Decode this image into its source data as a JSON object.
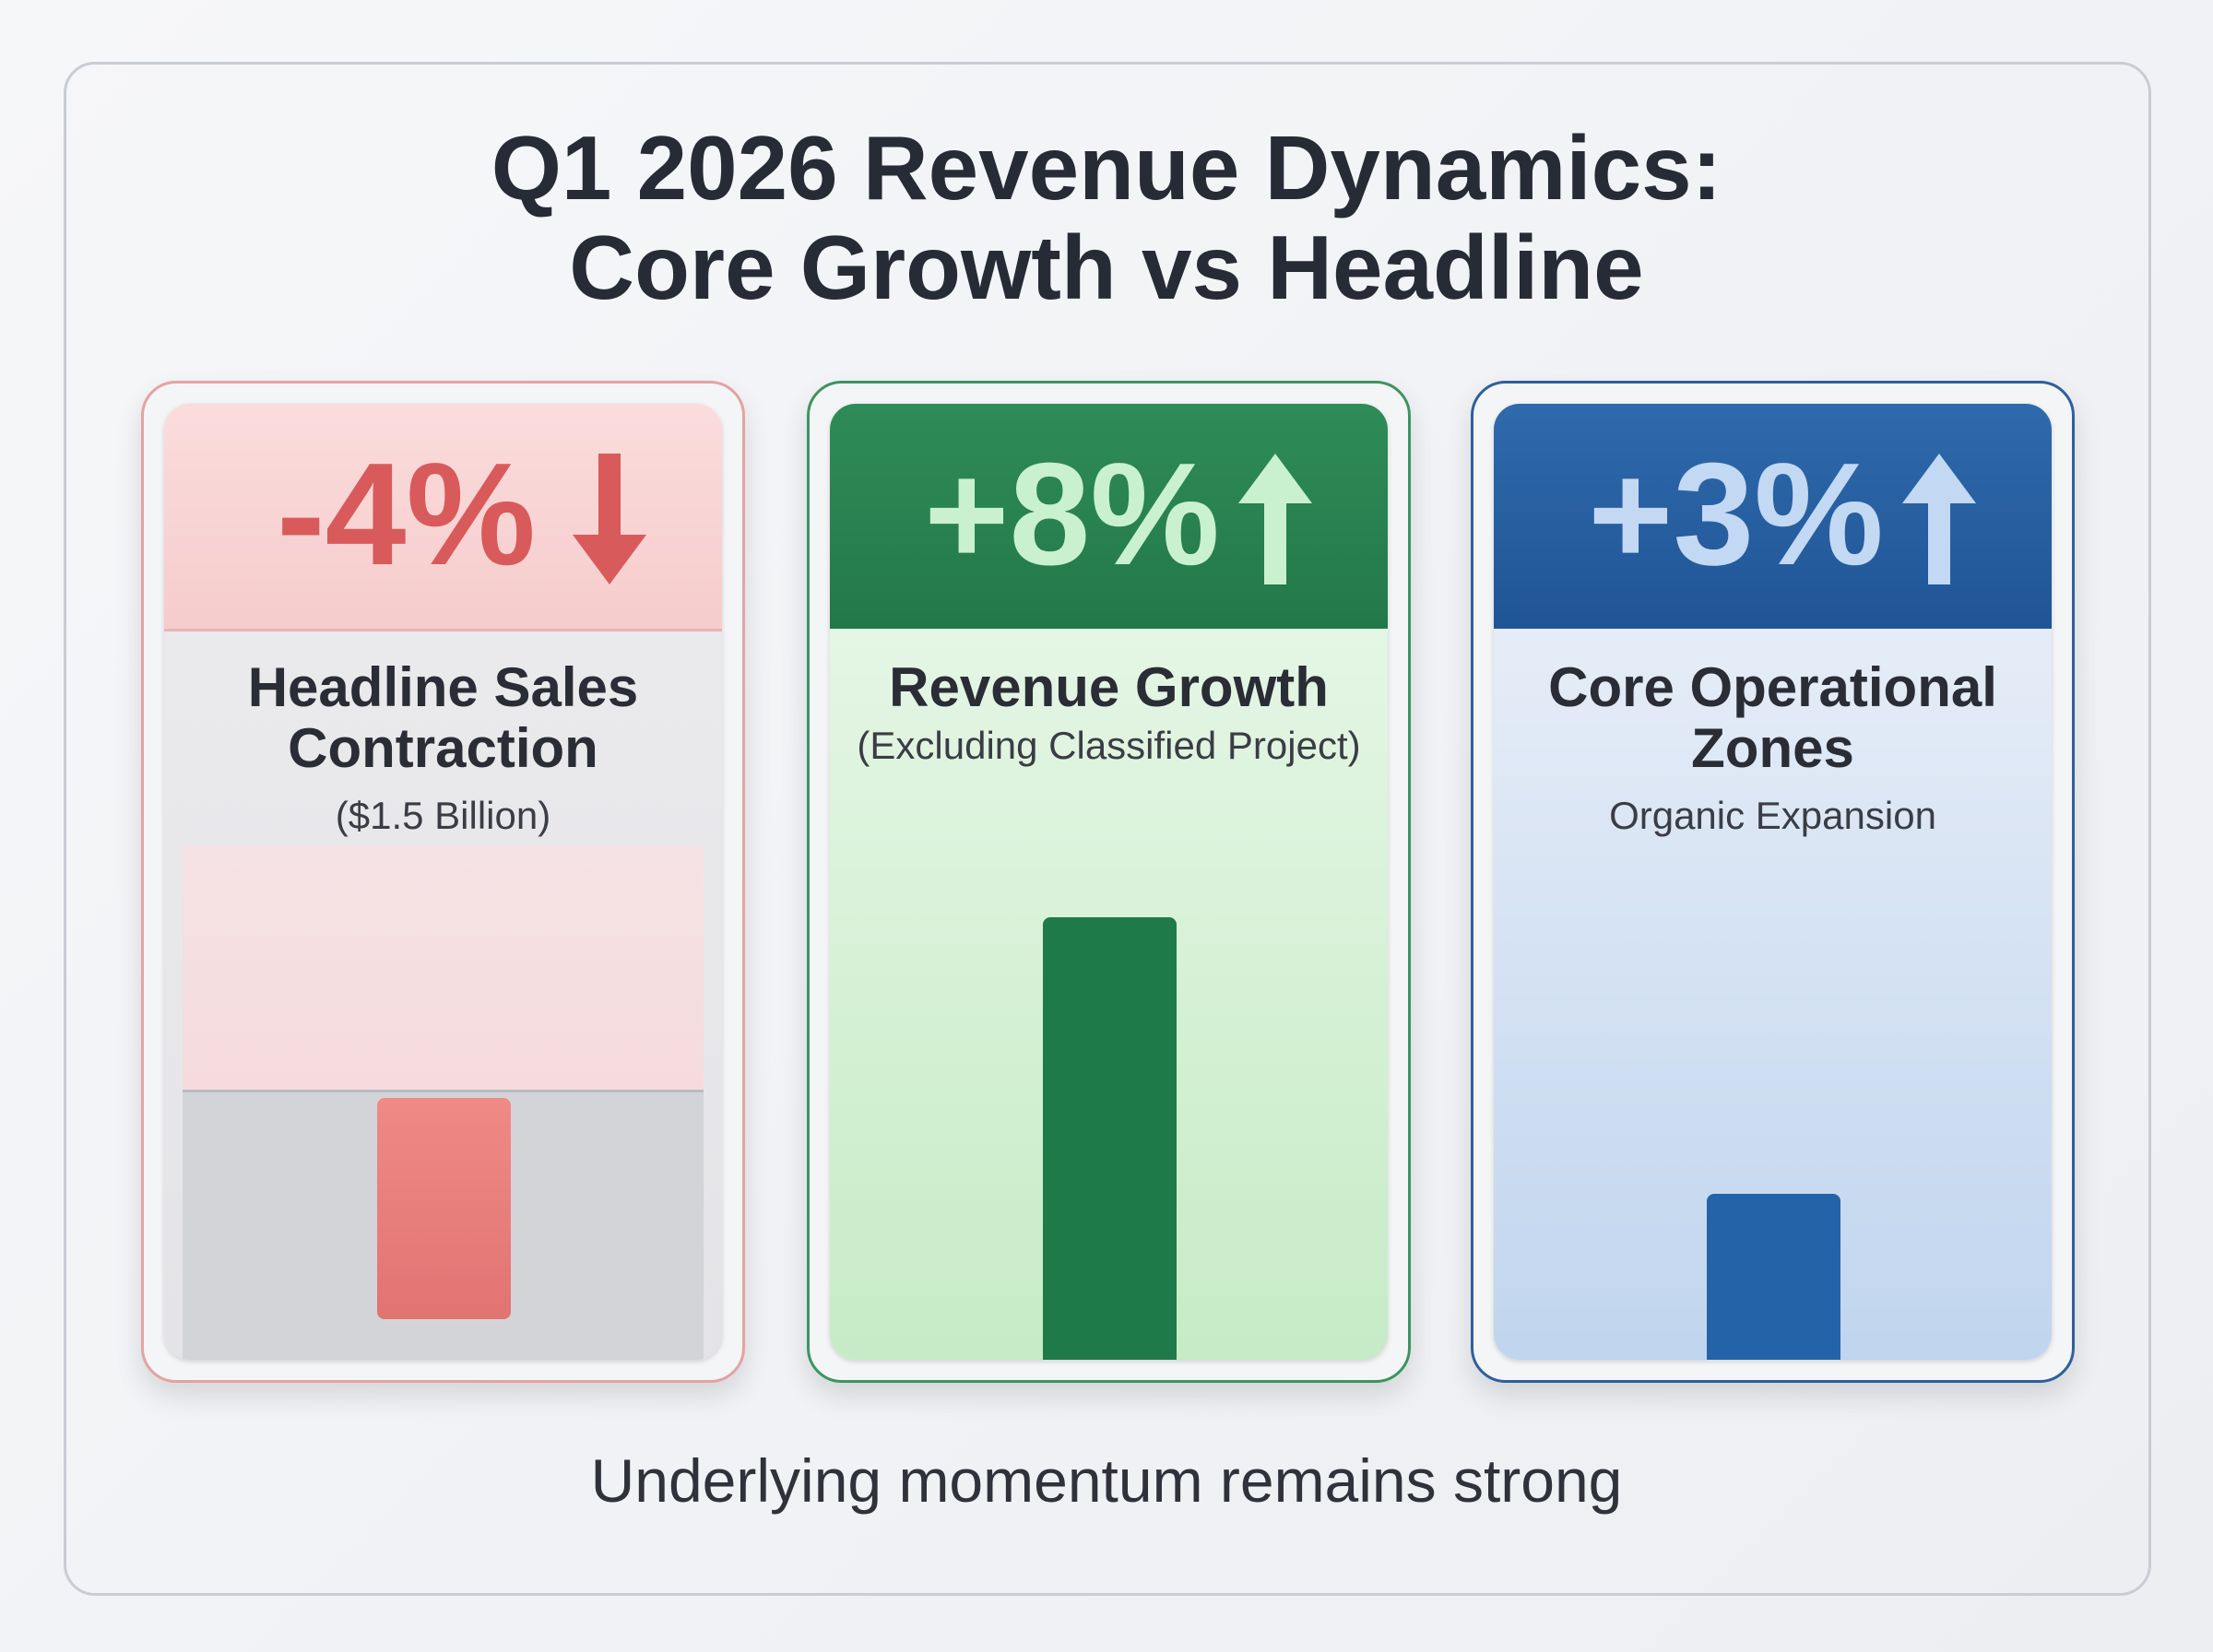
{
  "chart_data": {
    "type": "bar",
    "title": "Q1 2026 Revenue Dynamics: Core Growth vs Headline",
    "categories": [
      "Headline Sales Contraction",
      "Revenue Growth",
      "Core Operational Zones"
    ],
    "subtitles": [
      "($1.5 Billion)",
      "(Excluding Classified Project)",
      "Organic Expansion"
    ],
    "values": [
      -4,
      8,
      3
    ],
    "value_labels": [
      "-4%",
      "+8%",
      "+3%"
    ],
    "colors": [
      "#e27373",
      "#1f7a4a",
      "#2563a8"
    ],
    "caption": "Underlying momentum remains strong"
  }
}
